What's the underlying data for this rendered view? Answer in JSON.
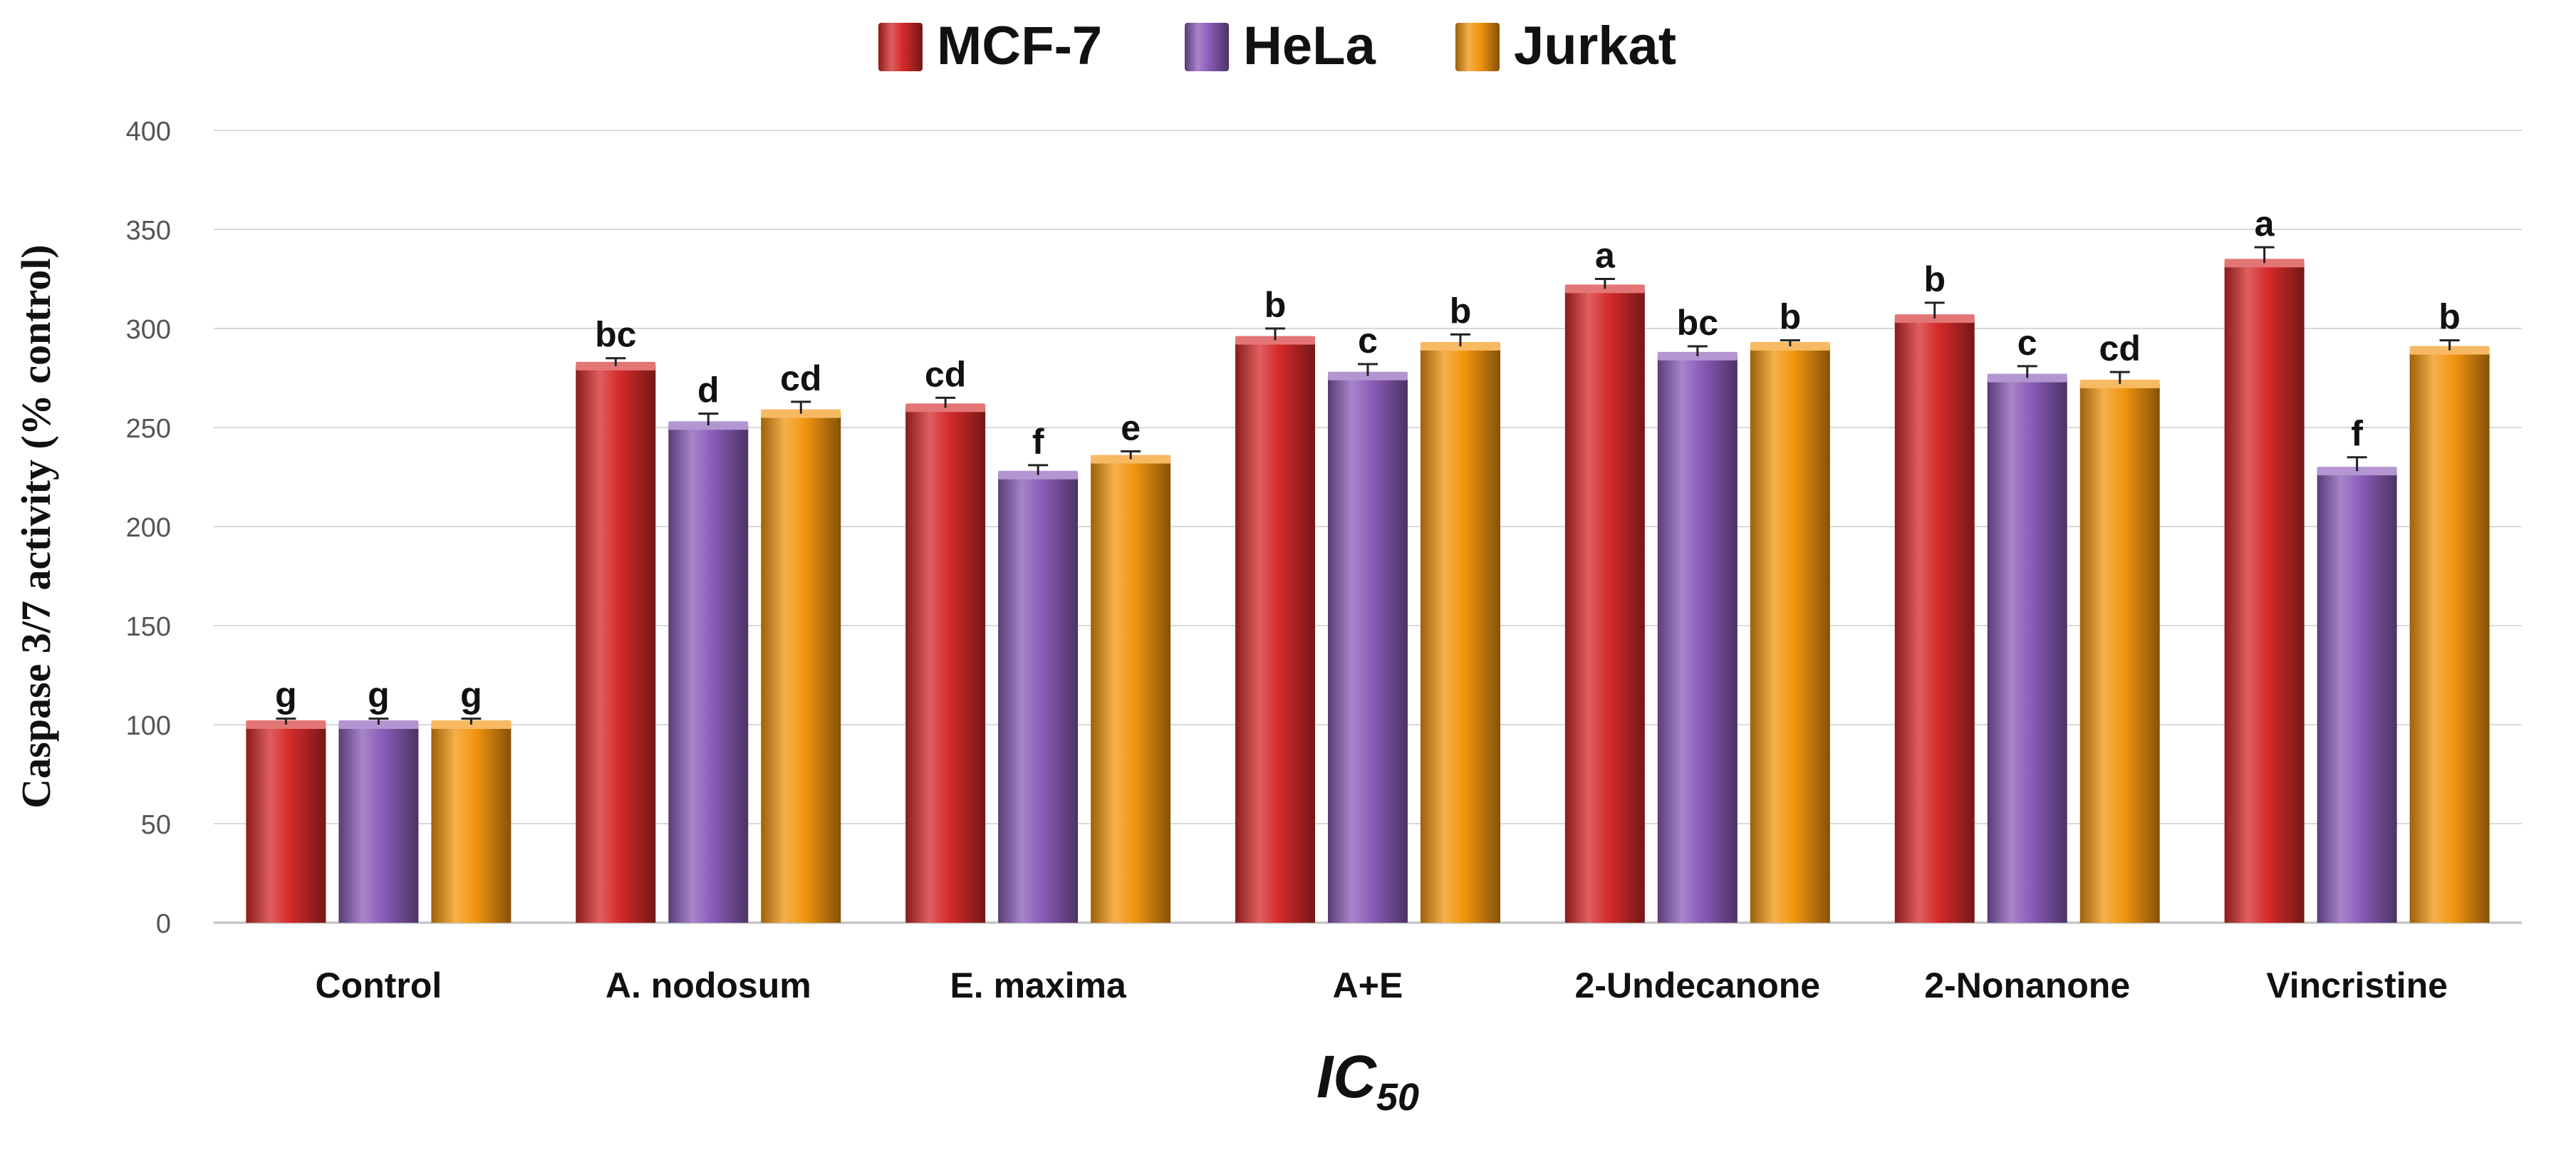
{
  "chart_data": {
    "type": "bar",
    "title": "",
    "xlabel_main": "IC",
    "xlabel_sub": "50",
    "ylabel": "Caspase 3/7 activity (% control)",
    "ylim": [
      0,
      400
    ],
    "yticks": [
      0,
      50,
      100,
      150,
      200,
      250,
      300,
      350,
      400
    ],
    "grid": true,
    "legend_position": "top-center",
    "categories": [
      "Control",
      "A. nodosum",
      "E. maxima",
      "A+E",
      "2-Undecanone",
      "2-Nonanone",
      "Vincristine"
    ],
    "series": [
      {
        "name": "MCF-7",
        "color": "#d42a2a",
        "values": [
          100,
          281,
          260,
          294,
          320,
          305,
          333
        ],
        "errors": [
          3,
          4,
          5,
          6,
          5,
          8,
          8
        ],
        "labels": [
          "g",
          "bc",
          "cd",
          "b",
          "a",
          "b",
          "a"
        ]
      },
      {
        "name": "HeLa",
        "color": "#8a5cb8",
        "values": [
          100,
          251,
          226,
          276,
          286,
          275,
          228
        ],
        "errors": [
          3,
          6,
          5,
          6,
          5,
          6,
          7
        ],
        "labels": [
          "g",
          "d",
          "f",
          "c",
          "bc",
          "c",
          "f"
        ]
      },
      {
        "name": "Jurkat",
        "color": "#f2950f",
        "values": [
          100,
          257,
          234,
          291,
          291,
          272,
          289
        ],
        "errors": [
          3,
          6,
          4,
          6,
          3,
          6,
          5
        ],
        "labels": [
          "g",
          "cd",
          "e",
          "b",
          "b",
          "cd",
          "b"
        ]
      }
    ]
  }
}
